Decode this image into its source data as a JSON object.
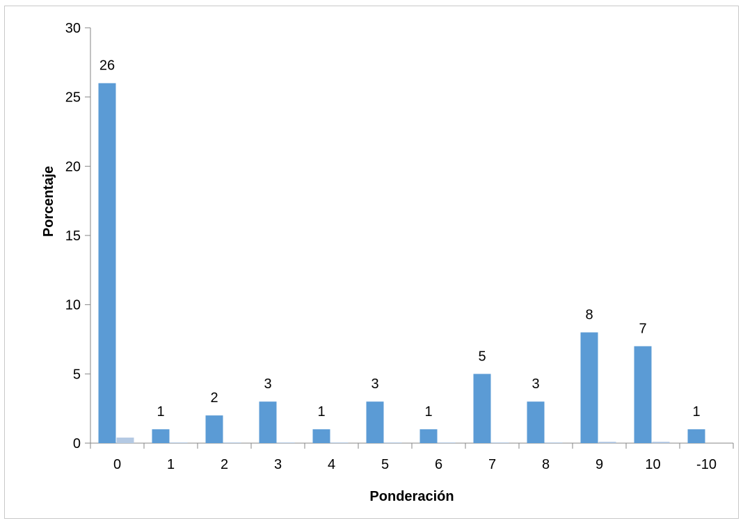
{
  "chart_data": {
    "type": "bar",
    "title": "",
    "xlabel": "Ponderación",
    "ylabel": "Porcentaje",
    "ylim": [
      0,
      30
    ],
    "yticks": [
      0,
      5,
      10,
      15,
      20,
      25,
      30
    ],
    "grid": false,
    "legend": "none",
    "categories": [
      "0",
      "1",
      "2",
      "3",
      "4",
      "5",
      "6",
      "7",
      "8",
      "9",
      "10",
      "-10"
    ],
    "series": [
      {
        "color": "#5b9bd5",
        "values": [
          26,
          1,
          2,
          3,
          1,
          3,
          1,
          5,
          3,
          8,
          7,
          1
        ],
        "data_labels": [
          "26",
          "1",
          "2",
          "3",
          "1",
          "3",
          "1",
          "5",
          "3",
          "8",
          "7",
          "1"
        ]
      },
      {
        "color": "#b4c9e3",
        "values": [
          0.4,
          0.05,
          0.05,
          0.05,
          0.05,
          0.05,
          0.05,
          0.05,
          0.05,
          0.1,
          0.1,
          0
        ]
      }
    ]
  }
}
